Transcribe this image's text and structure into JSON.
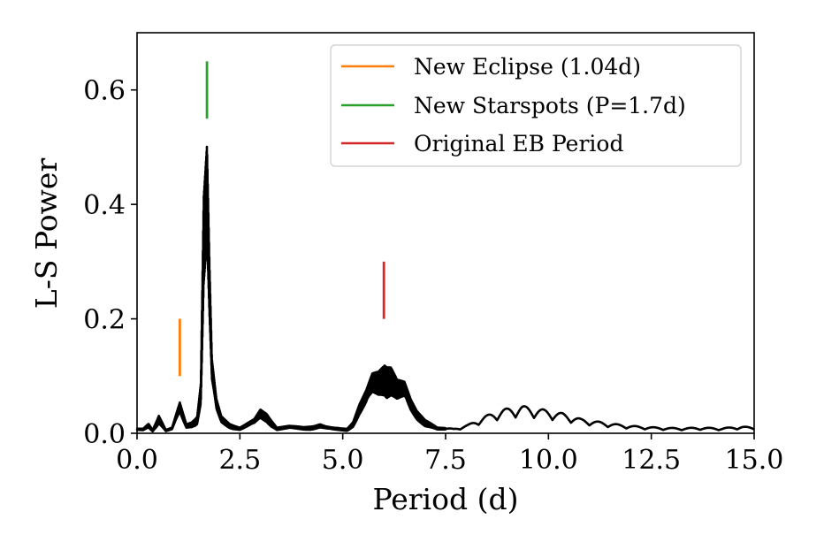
{
  "chart_data": {
    "type": "line",
    "xlabel": "Period (d)",
    "ylabel": "L-S Power",
    "xlim": [
      0.0,
      15.0
    ],
    "ylim": [
      0.0,
      0.7
    ],
    "xticks": [
      0.0,
      2.5,
      5.0,
      7.5,
      10.0,
      12.5,
      15.0
    ],
    "xtick_labels": [
      "0.0",
      "2.5",
      "5.0",
      "7.5",
      "10.0",
      "12.5",
      "15.0"
    ],
    "yticks": [
      0.0,
      0.2,
      0.4,
      0.6
    ],
    "ytick_labels": [
      "0.0",
      "0.2",
      "0.4",
      "0.6"
    ],
    "grid": false,
    "legend_position": "top-right",
    "periodogram": {
      "color": "#000000",
      "peaks": [
        [
          0.15,
          0.008
        ],
        [
          0.28,
          0.017
        ],
        [
          0.38,
          0.006
        ],
        [
          0.53,
          0.032
        ],
        [
          0.7,
          0.006
        ],
        [
          0.85,
          0.01
        ],
        [
          1.04,
          0.054
        ],
        [
          1.2,
          0.016
        ],
        [
          1.33,
          0.02
        ],
        [
          1.46,
          0.03
        ],
        [
          1.55,
          0.09
        ],
        [
          1.62,
          0.42
        ],
        [
          1.7,
          0.508
        ],
        [
          1.76,
          0.3
        ],
        [
          1.82,
          0.13
        ],
        [
          1.93,
          0.06
        ],
        [
          2.05,
          0.03
        ],
        [
          2.25,
          0.017
        ],
        [
          2.5,
          0.01
        ],
        [
          2.85,
          0.025
        ],
        [
          3.0,
          0.042
        ],
        [
          3.15,
          0.035
        ],
        [
          3.4,
          0.01
        ],
        [
          3.7,
          0.013
        ],
        [
          3.9,
          0.012
        ],
        [
          4.05,
          0.011
        ],
        [
          4.3,
          0.013
        ],
        [
          4.45,
          0.016
        ],
        [
          4.6,
          0.012
        ],
        [
          4.75,
          0.01
        ],
        [
          5.1,
          0.008
        ],
        [
          5.25,
          0.02
        ],
        [
          5.4,
          0.05
        ],
        [
          5.57,
          0.075
        ],
        [
          5.72,
          0.105
        ],
        [
          5.87,
          0.11
        ],
        [
          6.02,
          0.125
        ],
        [
          6.17,
          0.12
        ],
        [
          6.32,
          0.095
        ],
        [
          6.5,
          0.09
        ],
        [
          6.65,
          0.06
        ],
        [
          6.8,
          0.04
        ],
        [
          7.0,
          0.025
        ],
        [
          7.3,
          0.01
        ],
        [
          7.7,
          0.008
        ],
        [
          8.05,
          0.015
        ],
        [
          8.45,
          0.03
        ],
        [
          8.9,
          0.042
        ],
        [
          9.35,
          0.048
        ],
        [
          9.85,
          0.042
        ],
        [
          10.35,
          0.035
        ],
        [
          10.8,
          0.025
        ],
        [
          11.25,
          0.02
        ],
        [
          11.75,
          0.015
        ],
        [
          12.2,
          0.012
        ],
        [
          12.7,
          0.01
        ],
        [
          13.2,
          0.009
        ],
        [
          13.7,
          0.01
        ],
        [
          14.2,
          0.009
        ],
        [
          14.7,
          0.012
        ],
        [
          15.0,
          0.01
        ]
      ]
    },
    "series": [
      {
        "name": "New Eclipse (1.04d)",
        "color": "#ff7f0e",
        "x": 1.04,
        "y": [
          0.1,
          0.2
        ]
      },
      {
        "name": "New Starspots (P=1.7d)",
        "color": "#2ca02c",
        "x": 1.7,
        "y": [
          0.55,
          0.65
        ]
      },
      {
        "name": "Original EB Period",
        "color": "#d62728",
        "x": 6.0,
        "y": [
          0.2,
          0.3
        ]
      }
    ]
  }
}
